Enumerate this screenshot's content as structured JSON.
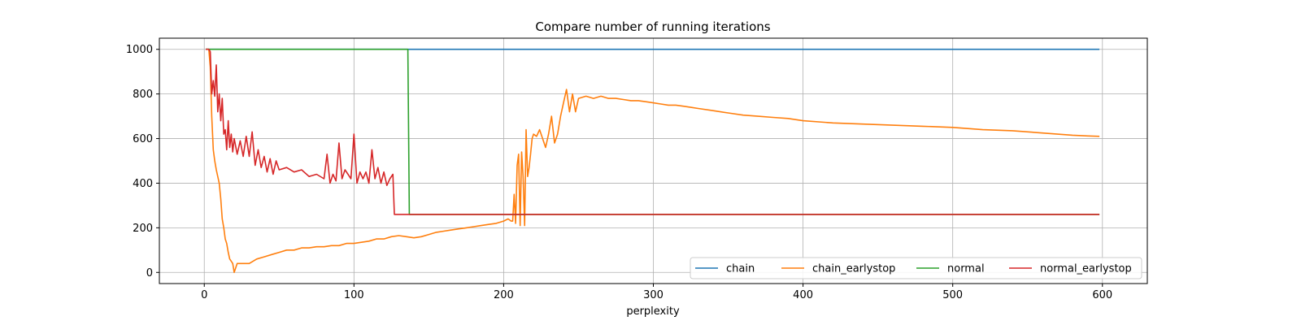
{
  "chart_data": {
    "type": "line",
    "title": "Compare number of running iterations",
    "xlabel": "perplexity",
    "ylabel": "",
    "xlim": [
      -30,
      630
    ],
    "ylim": [
      -50,
      1050
    ],
    "xticks": [
      0,
      100,
      200,
      300,
      400,
      500,
      600
    ],
    "yticks": [
      0,
      200,
      400,
      600,
      800,
      1000
    ],
    "grid": true,
    "legend_position": "lower-right",
    "series": [
      {
        "name": "chain",
        "color": "#1f77b4",
        "x": [
          1,
          598
        ],
        "y": [
          1000,
          1000
        ]
      },
      {
        "name": "chain_earlystop",
        "color": "#ff7f0e",
        "x": [
          1,
          3,
          4,
          5,
          6,
          7,
          8,
          9,
          10,
          11,
          12,
          13,
          14,
          15,
          16,
          17,
          18,
          19,
          20,
          22,
          25,
          30,
          35,
          40,
          45,
          50,
          55,
          60,
          65,
          70,
          75,
          80,
          85,
          90,
          95,
          100,
          105,
          110,
          115,
          120,
          125,
          130,
          135,
          140,
          145,
          150,
          155,
          160,
          165,
          170,
          175,
          180,
          185,
          190,
          195,
          200,
          203,
          205,
          206,
          207,
          208,
          209,
          210,
          211,
          212,
          213,
          214,
          215,
          216,
          217,
          218,
          219,
          220,
          222,
          224,
          226,
          228,
          230,
          232,
          234,
          236,
          238,
          240,
          242,
          244,
          246,
          248,
          250,
          255,
          260,
          265,
          270,
          275,
          280,
          285,
          290,
          295,
          300,
          305,
          310,
          315,
          320,
          325,
          330,
          340,
          350,
          360,
          370,
          380,
          390,
          400,
          420,
          440,
          460,
          480,
          500,
          520,
          540,
          560,
          580,
          590,
          598
        ],
        "y": [
          1000,
          1000,
          920,
          700,
          550,
          500,
          460,
          430,
          400,
          330,
          240,
          200,
          150,
          130,
          90,
          60,
          50,
          40,
          0,
          40,
          40,
          40,
          60,
          70,
          80,
          90,
          100,
          100,
          110,
          110,
          115,
          115,
          120,
          120,
          130,
          130,
          135,
          140,
          150,
          150,
          160,
          165,
          160,
          155,
          160,
          170,
          180,
          185,
          190,
          195,
          200,
          205,
          210,
          215,
          220,
          230,
          240,
          230,
          230,
          350,
          220,
          480,
          530,
          210,
          540,
          430,
          210,
          640,
          430,
          470,
          530,
          600,
          620,
          610,
          640,
          600,
          560,
          620,
          700,
          580,
          620,
          700,
          760,
          820,
          720,
          800,
          720,
          780,
          790,
          780,
          790,
          780,
          780,
          775,
          770,
          770,
          765,
          760,
          755,
          750,
          750,
          745,
          740,
          735,
          725,
          715,
          705,
          700,
          695,
          690,
          680,
          670,
          665,
          660,
          655,
          650,
          640,
          635,
          625,
          615,
          612,
          610
        ]
      },
      {
        "name": "normal",
        "color": "#2ca02c",
        "x": [
          1,
          136,
          137,
          598
        ],
        "y": [
          1000,
          1000,
          260,
          260
        ]
      },
      {
        "name": "normal_earlystop",
        "color": "#d62728",
        "x": [
          1,
          3,
          4,
          5,
          6,
          7,
          8,
          9,
          10,
          11,
          12,
          13,
          14,
          15,
          16,
          17,
          18,
          19,
          20,
          22,
          24,
          26,
          28,
          30,
          32,
          34,
          36,
          38,
          40,
          42,
          44,
          46,
          48,
          50,
          55,
          60,
          65,
          70,
          75,
          80,
          82,
          84,
          86,
          88,
          90,
          92,
          94,
          96,
          98,
          100,
          102,
          104,
          106,
          108,
          110,
          112,
          114,
          116,
          118,
          120,
          122,
          124,
          126,
          127,
          598
        ],
        "y": [
          1000,
          1000,
          990,
          800,
          860,
          790,
          930,
          720,
          800,
          680,
          780,
          620,
          640,
          550,
          680,
          560,
          620,
          540,
          600,
          530,
          590,
          520,
          610,
          520,
          630,
          480,
          550,
          470,
          520,
          450,
          510,
          440,
          500,
          460,
          470,
          450,
          460,
          430,
          440,
          420,
          530,
          400,
          440,
          410,
          580,
          420,
          460,
          440,
          420,
          620,
          400,
          450,
          420,
          450,
          400,
          550,
          420,
          470,
          400,
          450,
          390,
          420,
          440,
          260,
          260
        ]
      }
    ]
  }
}
